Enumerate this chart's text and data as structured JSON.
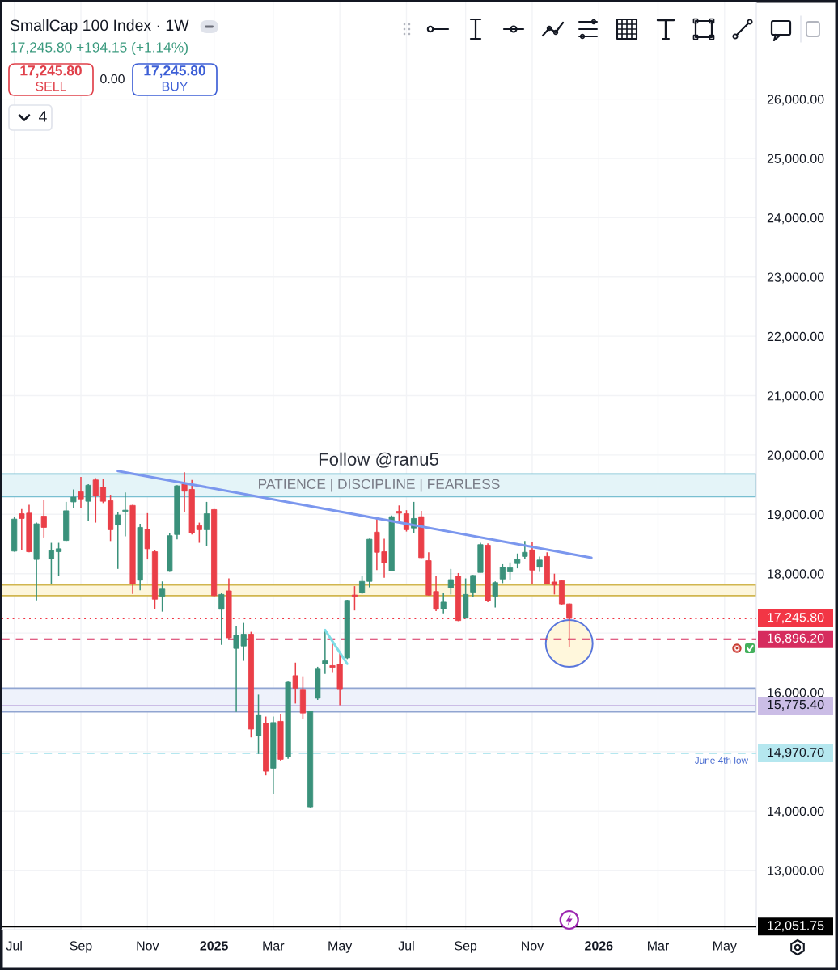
{
  "chart_data": {
    "type": "candlestick",
    "title": "SmallCap 100 Index · 1W",
    "subtitle": "17,245.80 +194.15 (+1.14%)",
    "annotations": [
      "17,245.80\nSELL",
      "0.00",
      "17,245.80\nBUY",
      "4",
      "Follow @ranu5",
      {
        "text": "June 4th low",
        "x": "2026-05-01",
        "y": 14970.7
      }
    ],
    "x": [
      "2024-07-01",
      "2024-07-08",
      "2024-07-15",
      "2024-07-22",
      "2024-07-29",
      "2024-08-05",
      "2024-08-12",
      "2024-08-19",
      "2024-08-26",
      "2024-09-02",
      "2024-09-09",
      "2024-09-16",
      "2024-09-23",
      "2024-09-30",
      "2024-10-07",
      "2024-10-14",
      "2024-10-21",
      "2024-10-28",
      "2024-11-04",
      "2024-11-11",
      "2024-11-18",
      "2024-11-25",
      "2024-12-02",
      "2024-12-09",
      "2024-12-16",
      "2024-12-23",
      "2024-12-30",
      "2025-01-06",
      "2025-01-13",
      "2025-01-20",
      "2025-01-27",
      "2025-02-03",
      "2025-02-10",
      "2025-02-17",
      "2025-02-24",
      "2025-03-03",
      "2025-03-10",
      "2025-03-17",
      "2025-03-24",
      "2025-03-31",
      "2025-04-07",
      "2025-04-14",
      "2025-04-21",
      "2025-04-28",
      "2025-05-05",
      "2025-05-12",
      "2025-05-19",
      "2025-05-26",
      "2025-06-02",
      "2025-06-09",
      "2025-06-16",
      "2025-06-23",
      "2025-06-30",
      "2025-07-07",
      "2025-07-14",
      "2025-07-21",
      "2025-07-28",
      "2025-08-04",
      "2025-08-11",
      "2025-08-18",
      "2025-08-25",
      "2025-09-01",
      "2025-09-08",
      "2025-09-15",
      "2025-09-22",
      "2025-09-29",
      "2025-10-06",
      "2025-10-13",
      "2025-10-20",
      "2025-10-27",
      "2025-11-03",
      "2025-11-10",
      "2025-11-17",
      "2025-11-24",
      "2025-12-01",
      "2025-12-08"
    ],
    "ohlc": [
      [
        18380,
        18960,
        18370,
        18920
      ],
      [
        19010,
        19090,
        18400,
        18930
      ],
      [
        19020,
        19160,
        18360,
        18370
      ],
      [
        18240,
        18860,
        17550,
        18840
      ],
      [
        18970,
        19240,
        18610,
        18780
      ],
      [
        18250,
        18520,
        17820,
        18390
      ],
      [
        18370,
        18520,
        17960,
        18420
      ],
      [
        18560,
        19210,
        18550,
        19060
      ],
      [
        19210,
        19420,
        19100,
        19290
      ],
      [
        19380,
        19630,
        19100,
        19260
      ],
      [
        19220,
        19510,
        18890,
        19490
      ],
      [
        19580,
        19610,
        18860,
        19310
      ],
      [
        19460,
        19600,
        19190,
        19220
      ],
      [
        19230,
        19330,
        18550,
        18740
      ],
      [
        18820,
        19040,
        18080,
        18990
      ],
      [
        19050,
        19370,
        18630,
        19070
      ],
      [
        19150,
        19160,
        17660,
        17830
      ],
      [
        17890,
        18840,
        17720,
        18780
      ],
      [
        18750,
        19020,
        18240,
        18420
      ],
      [
        18370,
        18400,
        17410,
        17570
      ],
      [
        17620,
        17870,
        17360,
        17740
      ],
      [
        18040,
        18690,
        18030,
        18640
      ],
      [
        18660,
        19490,
        18580,
        19480
      ],
      [
        19510,
        19710,
        19040,
        19390
      ],
      [
        19420,
        19580,
        18660,
        18690
      ],
      [
        18810,
        18860,
        18520,
        18740
      ],
      [
        18740,
        19210,
        18470,
        19010
      ],
      [
        19080,
        19090,
        17610,
        17630
      ],
      [
        17400,
        17680,
        16800,
        17650
      ],
      [
        17710,
        17920,
        16900,
        16920
      ],
      [
        16740,
        17120,
        15670,
        16960
      ],
      [
        16780,
        17170,
        16530,
        16980
      ],
      [
        16980,
        17020,
        15240,
        15380
      ],
      [
        15270,
        15960,
        14960,
        15620
      ],
      [
        15480,
        15590,
        14600,
        14670
      ],
      [
        14720,
        15590,
        14290,
        15490
      ],
      [
        15510,
        15640,
        14840,
        14870
      ],
      [
        14910,
        16180,
        14880,
        16170
      ],
      [
        16280,
        16500,
        15810,
        16070
      ],
      [
        16050,
        16270,
        15550,
        15650
      ],
      [
        14070,
        15690,
        14060,
        15680
      ],
      [
        15900,
        16430,
        15870,
        16390
      ],
      [
        16480,
        17050,
        16310,
        16530
      ],
      [
        16450,
        16880,
        16340,
        16420
      ],
      [
        16470,
        16660,
        15780,
        16060
      ],
      [
        16580,
        17560,
        16560,
        17550
      ],
      [
        17640,
        17790,
        17380,
        17620
      ],
      [
        17680,
        17960,
        17660,
        17870
      ],
      [
        17870,
        18590,
        17770,
        18580
      ],
      [
        18700,
        18960,
        18060,
        18360
      ],
      [
        18370,
        18590,
        17930,
        18180
      ],
      [
        18050,
        18980,
        18040,
        18960
      ],
      [
        19050,
        19150,
        18890,
        19020
      ],
      [
        19010,
        19070,
        18710,
        18740
      ],
      [
        18770,
        19210,
        18690,
        18930
      ],
      [
        18960,
        19060,
        18260,
        18270
      ],
      [
        18220,
        18360,
        17630,
        17640
      ],
      [
        17700,
        17970,
        17370,
        17400
      ],
      [
        17410,
        17680,
        17330,
        17520
      ],
      [
        17760,
        18080,
        17650,
        17900
      ],
      [
        17960,
        18010,
        17200,
        17210
      ],
      [
        17250,
        17920,
        17250,
        17650
      ],
      [
        17690,
        17980,
        17600,
        17970
      ],
      [
        18020,
        18520,
        18020,
        18490
      ],
      [
        18480,
        18510,
        17520,
        17540
      ],
      [
        17620,
        17870,
        17430,
        17850
      ],
      [
        17910,
        18160,
        17840,
        18110
      ],
      [
        18030,
        18190,
        17890,
        18100
      ],
      [
        18170,
        18340,
        18090,
        18240
      ],
      [
        18290,
        18550,
        18250,
        18360
      ],
      [
        18400,
        18530,
        17830,
        18060
      ],
      [
        18110,
        18290,
        18030,
        18230
      ],
      [
        18290,
        18360,
        17820,
        17830
      ],
      [
        17860,
        18000,
        17650,
        17810
      ],
      [
        17880,
        17900,
        17480,
        17490
      ],
      [
        17490,
        17500,
        16770,
        17245.8
      ]
    ],
    "colors": [
      "#3a917b",
      "#ea3f48",
      "#ea3f48",
      "#3a917b",
      "#ea3f48",
      "#3a917b",
      "#3a917b",
      "#3a917b",
      "#3a917b",
      "#ea3f48",
      "#3a917b",
      "#ea3f48",
      "#ea3f48",
      "#ea3f48",
      "#3a917b",
      "#3a917b",
      "#ea3f48",
      "#3a917b",
      "#ea3f48",
      "#ea3f48",
      "#3a917b",
      "#3a917b",
      "#3a917b",
      "#ea3f48",
      "#ea3f48",
      "#ea3f48",
      "#3a917b",
      "#ea3f48",
      "#3a917b",
      "#ea3f48",
      "#3a917b",
      "#3a917b",
      "#ea3f48",
      "#3a917b",
      "#ea3f48",
      "#3a917b",
      "#ea3f48",
      "#3a917b",
      "#ea3f48",
      "#ea3f48",
      "#3a917b",
      "#3a917b",
      "#3a917b",
      "#ea3f48",
      "#ea3f48",
      "#3a917b",
      "#ea3f48",
      "#3a917b",
      "#3a917b",
      "#ea3f48",
      "#ea3f48",
      "#3a917b",
      "#ea3f48",
      "#ea3f48",
      "#3a917b",
      "#ea3f48",
      "#ea3f48",
      "#ea3f48",
      "#3a917b",
      "#3a917b",
      "#ea3f48",
      "#3a917b",
      "#3a917b",
      "#3a917b",
      "#ea3f48",
      "#3a917b",
      "#3a917b",
      "#3a917b",
      "#3a917b",
      "#3a917b",
      "#ea3f48",
      "#3a917b",
      "#ea3f48",
      "#ea3f48",
      "#ea3f48",
      "#ea3f48"
    ],
    "series": [
      {
        "type": "line",
        "x": [
          "2024-10-07",
          "2025-12-29"
        ],
        "values": [
          19730,
          18270
        ],
        "color": "#7b97ee"
      },
      {
        "type": "line",
        "x": [
          "2025-04-21",
          "2025-05-12"
        ],
        "values": [
          17050,
          16480
        ],
        "color": "#7fdde6"
      }
    ],
    "xlim": [
      "2024-06-19",
      "2026-06-03"
    ],
    "ylim": [
      12000,
      27630
    ],
    "xticks": [
      {
        "value": "2024-07-01",
        "label": "Jul"
      },
      {
        "value": "2024-09-02",
        "label": "Sep"
      },
      {
        "value": "2024-11-04",
        "label": "Nov"
      },
      {
        "value": "2025-01-06",
        "label": "2025"
      },
      {
        "value": "2025-03-03",
        "label": "Mar"
      },
      {
        "value": "2025-05-05",
        "label": "May"
      },
      {
        "value": "2025-07-07",
        "label": "Jul"
      },
      {
        "value": "2025-09-01",
        "label": "Sep"
      },
      {
        "value": "2025-11-03",
        "label": "Nov"
      },
      {
        "value": "2026-01-05",
        "label": "2026"
      },
      {
        "value": "2026-03-02",
        "label": "Mar"
      },
      {
        "value": "2026-05-04",
        "label": "May"
      }
    ],
    "yticks": [
      {
        "value": 13000,
        "label": "13,000.00"
      },
      {
        "value": 14000,
        "label": "14,000.00"
      },
      {
        "value": 15000,
        "label": null
      },
      {
        "value": 16000,
        "label": "16,000.00"
      },
      {
        "value": 17000,
        "label": null
      },
      {
        "value": 18000,
        "label": "18,000.00"
      },
      {
        "value": 19000,
        "label": "19,000.00"
      },
      {
        "value": 20000,
        "label": "20,000.00"
      },
      {
        "value": 21000,
        "label": "21,000.00"
      },
      {
        "value": 22000,
        "label": "22,000.00"
      },
      {
        "value": 23000,
        "label": "23,000.00"
      },
      {
        "value": 24000,
        "label": "24,000.00"
      },
      {
        "value": 25000,
        "label": "25,000.00"
      },
      {
        "value": 26000,
        "label": "26,000.00"
      }
    ],
    "grid": true,
    "ref_lines": [
      {
        "axis": "y",
        "value": 17245.8,
        "label": "17,245.80",
        "color": "#f23645",
        "line_style": "dotted"
      },
      {
        "axis": "y",
        "value": 16896.2,
        "label": "16,896.20",
        "color": "#d62c5e",
        "line_style": "dashed"
      },
      {
        "axis": "y",
        "value": 15775.4,
        "label": "15,775.40",
        "color": "#cbbde6",
        "line_style": "solid"
      },
      {
        "axis": "y",
        "value": 14970.7,
        "label": "14,970.70",
        "color": "#b5e7ef",
        "line_style": "dashed"
      },
      {
        "axis": "y",
        "value": 12051.75,
        "label": "12,051.75",
        "color": "#000000",
        "line_style": "solid"
      }
    ],
    "bands": [
      {
        "axis": "y",
        "from": 19300,
        "to": 19680,
        "label": "PATIENCE | DISCIPLINE | FEARLESS",
        "color": "#e4f4f8"
      },
      {
        "axis": "y",
        "from": 17630,
        "to": 17810,
        "color": "#fdf6dc"
      },
      {
        "axis": "y",
        "from": 15670,
        "to": 16070,
        "color": "#eef2fb"
      }
    ]
  }
}
